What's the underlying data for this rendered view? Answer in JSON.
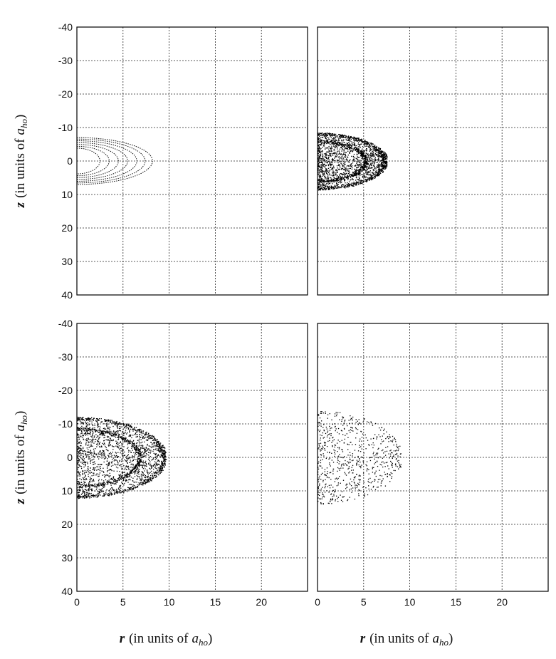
{
  "chart_data": [
    {
      "type": "scatter",
      "panel": "top-left",
      "description_marks": "nested dotted contour arcs",
      "xlabel": "",
      "ylabel_prefix": "z",
      "ylabel_text": "(in units of",
      "unit_sym": "a",
      "unit_sub": "ho",
      "xlim": [
        0,
        25
      ],
      "ylim": [
        -40,
        40
      ],
      "y_inverted": true,
      "xticks": [],
      "yticks": [
        "-40",
        "-30",
        "-20",
        "-10",
        "0",
        "10",
        "20",
        "30",
        "40"
      ],
      "grid": true,
      "cloud": {
        "style": "contours",
        "r_max": 8.2,
        "z_half": 7,
        "rings": [
          2.5,
          3.5,
          4.5,
          5.5,
          6.5,
          7.4,
          8.2
        ]
      }
    },
    {
      "type": "scatter",
      "panel": "top-right",
      "xlabel": "",
      "xlim": [
        0,
        25
      ],
      "ylim": [
        -40,
        40
      ],
      "y_inverted": true,
      "xticks": [],
      "yticks": [],
      "grid": true,
      "cloud": {
        "style": "dense-rings",
        "r_max": 7.5,
        "z_half": 8.5,
        "rings": [
          5.2,
          7.2
        ]
      }
    },
    {
      "type": "scatter",
      "panel": "bottom-left",
      "xlabel_prefix": "r",
      "xlabel_text": "(in units of",
      "ylabel_prefix": "z",
      "ylabel_text": "(in units of",
      "unit_sym": "a",
      "unit_sub": "ho",
      "xlim": [
        0,
        25
      ],
      "ylim": [
        -40,
        40
      ],
      "y_inverted": true,
      "xticks": [
        "0",
        "5",
        "10",
        "15",
        "20"
      ],
      "yticks": [
        "-40",
        "-30",
        "-20",
        "-10",
        "0",
        "10",
        "20",
        "30",
        "40"
      ],
      "grid": true,
      "cloud": {
        "style": "dense-rings",
        "r_max": 9.6,
        "z_half": 12,
        "rings": [
          6.8,
          9.4
        ]
      }
    },
    {
      "type": "scatter",
      "panel": "bottom-right",
      "xlabel_prefix": "r",
      "xlabel_text": "(in units of",
      "unit_sym": "a",
      "unit_sub": "ho",
      "xlim": [
        0,
        25
      ],
      "ylim": [
        -40,
        40
      ],
      "y_inverted": true,
      "xticks": [
        "0",
        "5",
        "10",
        "15",
        "20"
      ],
      "yticks": [],
      "grid": true,
      "cloud": {
        "style": "diffuse",
        "r_max": 9,
        "z_half": 14,
        "rings": []
      }
    }
  ]
}
